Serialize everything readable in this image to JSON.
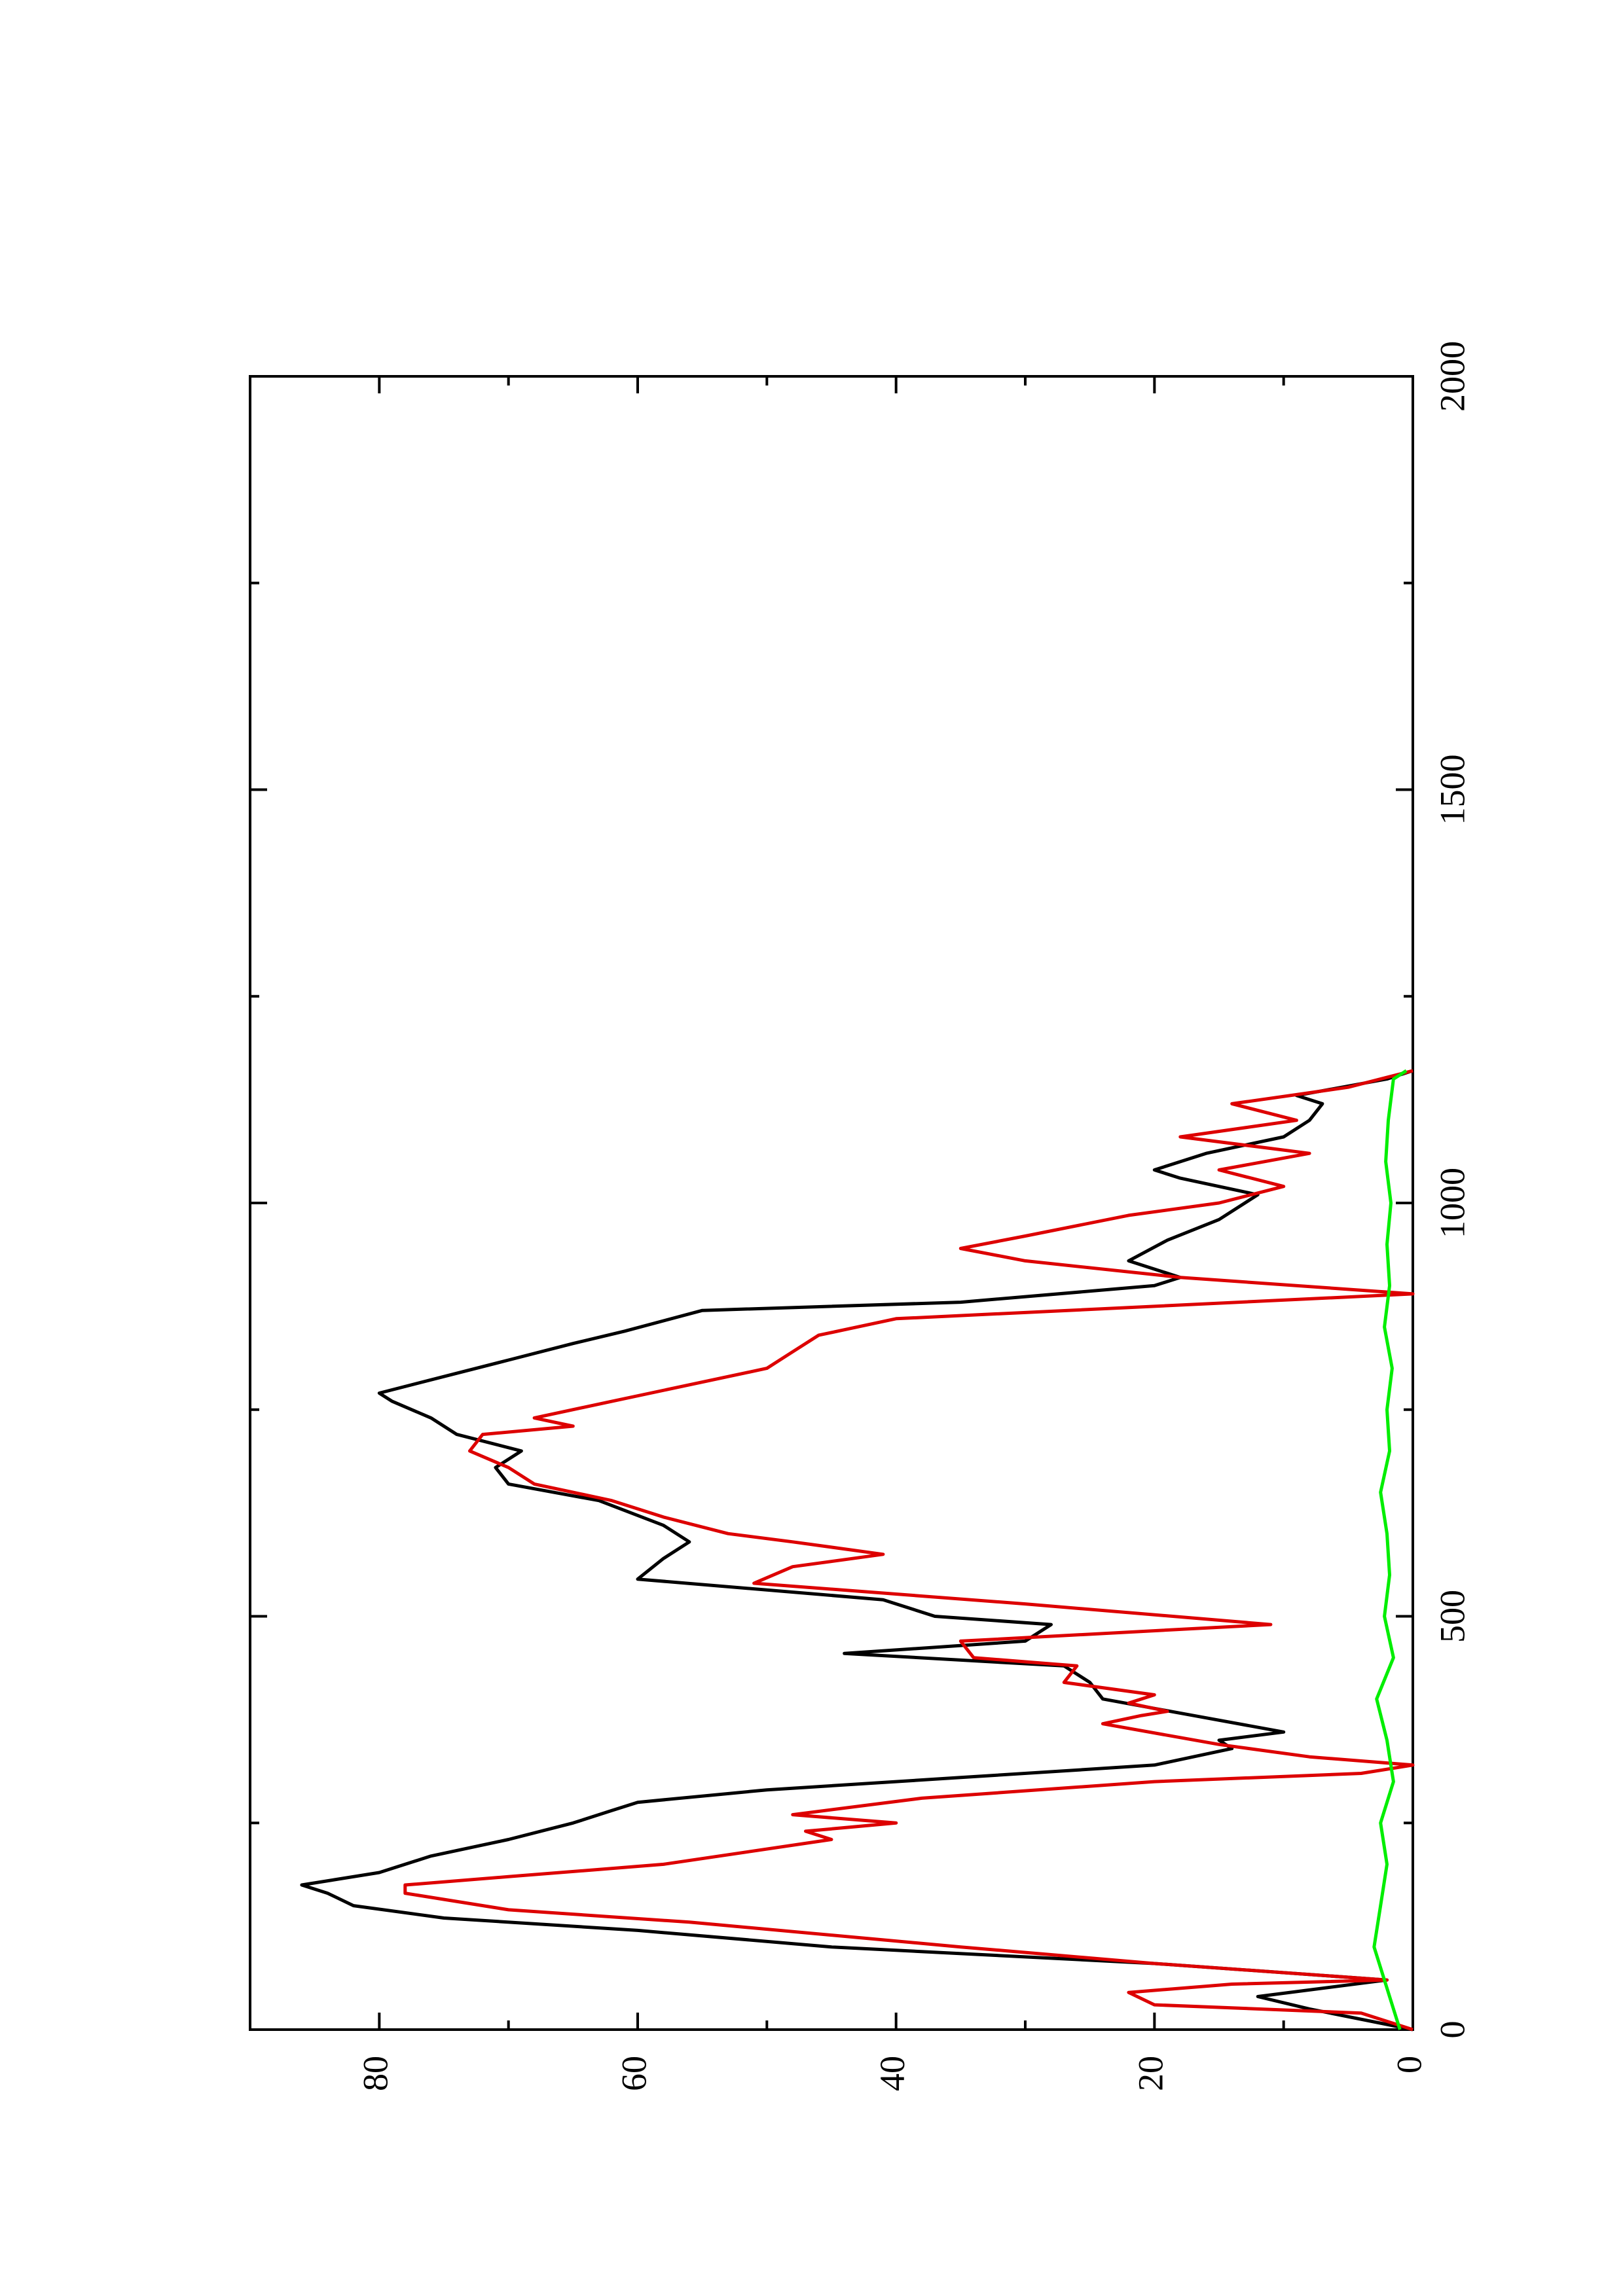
{
  "chart_data": {
    "type": "line",
    "orientation": "rotated-90-ccw",
    "title": "",
    "xlabel": "",
    "ylabel": "",
    "xlim": [
      0,
      2000
    ],
    "ylim": [
      0,
      90
    ],
    "x_ticks": [
      0,
      500,
      1000,
      1500,
      2000
    ],
    "x_minor_ticks": [
      250,
      750,
      1250,
      1750
    ],
    "y_ticks": [
      0,
      20,
      40,
      60,
      80
    ],
    "y_minor_ticks": [
      10,
      30,
      50,
      70
    ],
    "x_tick_labels": [
      "0",
      "500",
      "1000",
      "1500",
      "2000"
    ],
    "y_tick_labels": [
      "0",
      "20",
      "40",
      "60",
      "80"
    ],
    "grid": false,
    "legend": "none",
    "series": [
      {
        "color": "#000000",
        "points": [
          [
            0,
            0
          ],
          [
            25,
            8
          ],
          [
            40,
            12
          ],
          [
            60,
            2
          ],
          [
            80,
            20
          ],
          [
            100,
            45
          ],
          [
            120,
            60
          ],
          [
            135,
            75
          ],
          [
            150,
            82
          ],
          [
            165,
            84
          ],
          [
            175,
            86
          ],
          [
            190,
            80
          ],
          [
            210,
            76
          ],
          [
            230,
            70
          ],
          [
            250,
            65
          ],
          [
            265,
            62
          ],
          [
            275,
            60
          ],
          [
            290,
            50
          ],
          [
            305,
            35
          ],
          [
            320,
            20
          ],
          [
            340,
            14
          ],
          [
            350,
            15
          ],
          [
            360,
            10
          ],
          [
            380,
            17
          ],
          [
            400,
            24
          ],
          [
            420,
            25
          ],
          [
            440,
            27
          ],
          [
            455,
            44
          ],
          [
            470,
            30
          ],
          [
            490,
            28
          ],
          [
            500,
            37
          ],
          [
            520,
            41
          ],
          [
            545,
            60
          ],
          [
            570,
            58
          ],
          [
            590,
            56
          ],
          [
            610,
            58
          ],
          [
            640,
            63
          ],
          [
            660,
            70
          ],
          [
            680,
            71
          ],
          [
            700,
            69
          ],
          [
            720,
            74
          ],
          [
            740,
            76
          ],
          [
            760,
            79
          ],
          [
            770,
            80
          ],
          [
            790,
            75
          ],
          [
            810,
            70
          ],
          [
            830,
            65
          ],
          [
            845,
            61
          ],
          [
            870,
            55
          ],
          [
            880,
            35
          ],
          [
            900,
            20
          ],
          [
            910,
            18
          ],
          [
            930,
            22
          ],
          [
            955,
            19
          ],
          [
            980,
            15
          ],
          [
            1000,
            13
          ],
          [
            1010,
            12
          ],
          [
            1030,
            18
          ],
          [
            1040,
            20
          ],
          [
            1060,
            16
          ],
          [
            1070,
            13
          ],
          [
            1080,
            10
          ],
          [
            1100,
            8
          ],
          [
            1120,
            7
          ],
          [
            1130,
            9
          ],
          [
            1150,
            2
          ],
          [
            1160,
            0
          ]
        ]
      },
      {
        "color": "#dd0000",
        "points": [
          [
            0,
            0
          ],
          [
            20,
            4
          ],
          [
            30,
            20
          ],
          [
            45,
            22
          ],
          [
            55,
            14
          ],
          [
            60,
            2
          ],
          [
            80,
            20
          ],
          [
            100,
            35
          ],
          [
            130,
            56
          ],
          [
            145,
            70
          ],
          [
            165,
            78
          ],
          [
            175,
            78
          ],
          [
            185,
            70
          ],
          [
            200,
            58
          ],
          [
            230,
            45
          ],
          [
            240,
            47
          ],
          [
            250,
            40
          ],
          [
            260,
            48
          ],
          [
            280,
            38
          ],
          [
            300,
            20
          ],
          [
            310,
            4
          ],
          [
            320,
            0
          ],
          [
            330,
            8
          ],
          [
            345,
            15
          ],
          [
            370,
            24
          ],
          [
            380,
            21
          ],
          [
            385,
            19
          ],
          [
            395,
            22
          ],
          [
            405,
            20
          ],
          [
            420,
            27
          ],
          [
            440,
            26
          ],
          [
            450,
            34
          ],
          [
            470,
            35
          ],
          [
            490,
            11
          ],
          [
            515,
            30
          ],
          [
            540,
            51
          ],
          [
            560,
            48
          ],
          [
            575,
            41
          ],
          [
            590,
            48
          ],
          [
            600,
            53
          ],
          [
            620,
            58
          ],
          [
            640,
            62
          ],
          [
            660,
            68
          ],
          [
            680,
            70
          ],
          [
            700,
            73
          ],
          [
            720,
            72
          ],
          [
            730,
            65
          ],
          [
            740,
            68
          ],
          [
            760,
            62
          ],
          [
            800,
            50
          ],
          [
            820,
            48
          ],
          [
            840,
            46
          ],
          [
            860,
            40
          ],
          [
            890,
            0
          ],
          [
            910,
            18
          ],
          [
            930,
            30
          ],
          [
            945,
            35
          ],
          [
            960,
            30
          ],
          [
            985,
            22
          ],
          [
            1000,
            15
          ],
          [
            1020,
            10
          ],
          [
            1040,
            15
          ],
          [
            1060,
            8
          ],
          [
            1080,
            18
          ],
          [
            1100,
            9
          ],
          [
            1120,
            14
          ],
          [
            1140,
            5
          ],
          [
            1160,
            0
          ]
        ]
      },
      {
        "color": "#00ee00",
        "points": [
          [
            0,
            1
          ],
          [
            50,
            2
          ],
          [
            100,
            3
          ],
          [
            150,
            2.5
          ],
          [
            200,
            2
          ],
          [
            250,
            2.5
          ],
          [
            300,
            1.5
          ],
          [
            350,
            2
          ],
          [
            400,
            2.8
          ],
          [
            450,
            1.5
          ],
          [
            500,
            2.2
          ],
          [
            550,
            1.8
          ],
          [
            600,
            2
          ],
          [
            650,
            2.5
          ],
          [
            700,
            1.8
          ],
          [
            750,
            2
          ],
          [
            800,
            1.6
          ],
          [
            850,
            2.2
          ],
          [
            900,
            1.8
          ],
          [
            950,
            2
          ],
          [
            1000,
            1.7
          ],
          [
            1050,
            2.1
          ],
          [
            1100,
            1.9
          ],
          [
            1150,
            1.5
          ],
          [
            1160,
            0.5
          ]
        ]
      }
    ]
  }
}
